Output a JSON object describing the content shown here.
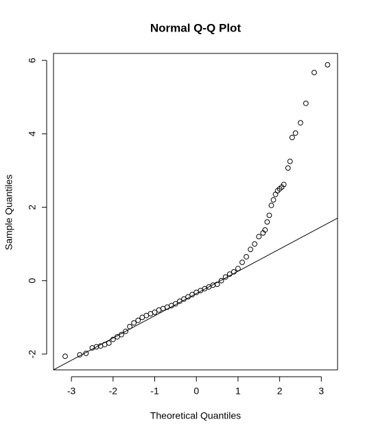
{
  "chart_data": {
    "type": "scatter",
    "title": "Normal Q-Q Plot",
    "x_label": "Theoretical Quantiles",
    "y_label": "Sample Quantiles",
    "x": [
      -3.15,
      -2.8,
      -2.65,
      -2.5,
      -2.4,
      -2.3,
      -2.2,
      -2.1,
      -2.0,
      -1.9,
      -1.8,
      -1.7,
      -1.6,
      -1.5,
      -1.4,
      -1.3,
      -1.2,
      -1.1,
      -1.0,
      -0.9,
      -0.8,
      -0.7,
      -0.6,
      -0.5,
      -0.4,
      -0.3,
      -0.2,
      -0.1,
      0,
      0.1,
      0.2,
      0.3,
      0.4,
      0.5,
      0.6,
      0.7,
      0.8,
      0.9,
      1.0,
      1.1,
      1.2,
      1.3,
      1.4,
      1.5,
      1.6,
      1.65,
      1.7,
      1.75,
      1.8,
      1.85,
      1.9,
      1.95,
      2.0,
      2.05,
      2.1,
      2.2,
      2.25,
      2.3,
      2.38,
      2.5,
      2.63,
      2.83,
      3.15
    ],
    "values": [
      -2.06,
      -2.02,
      -1.98,
      -1.83,
      -1.8,
      -1.78,
      -1.74,
      -1.7,
      -1.6,
      -1.53,
      -1.47,
      -1.38,
      -1.25,
      -1.15,
      -1.08,
      -1.0,
      -0.95,
      -0.9,
      -0.86,
      -0.8,
      -0.76,
      -0.72,
      -0.68,
      -0.63,
      -0.56,
      -0.5,
      -0.44,
      -0.38,
      -0.32,
      -0.27,
      -0.22,
      -0.17,
      -0.12,
      -0.1,
      0.0,
      0.1,
      0.18,
      0.24,
      0.33,
      0.5,
      0.65,
      0.85,
      1.0,
      1.2,
      1.3,
      1.38,
      1.6,
      1.78,
      2.05,
      2.2,
      2.35,
      2.45,
      2.5,
      2.55,
      2.62,
      3.07,
      3.25,
      3.9,
      4.02,
      4.3,
      4.83,
      5.67,
      5.88
    ],
    "reference_line": {
      "intercept": -0.35,
      "slope": 0.606
    },
    "color": "#000000",
    "xlim": [
      -3.43,
      3.39
    ],
    "ylim": [
      -2.43,
      6.19
    ],
    "xticks": [
      -3,
      -2,
      -1,
      0,
      1,
      2,
      3
    ],
    "yticks": [
      -2,
      0,
      2,
      4,
      6
    ]
  }
}
